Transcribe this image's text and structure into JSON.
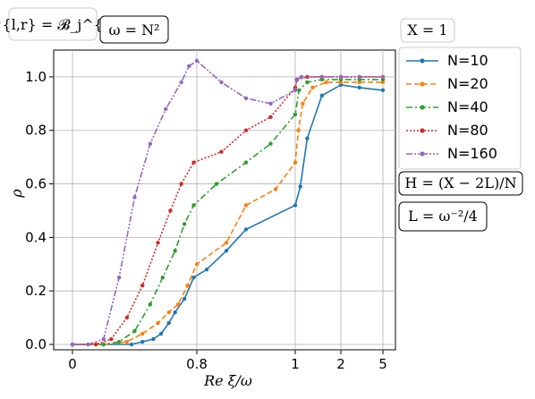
{
  "chart_data": {
    "type": "line",
    "title": "",
    "xlabel": "Re ξ/ω",
    "ylabel": "ρ",
    "x_scale": "piecewise (linear 0–1, then log-like up to 5)",
    "x_ticks": [
      {
        "value": 0,
        "label": "0"
      },
      {
        "value": 0.8,
        "label": "0.8"
      },
      {
        "value": 1,
        "label": "1"
      },
      {
        "value": 2,
        "label": "2"
      },
      {
        "value": 5,
        "label": "5"
      }
    ],
    "y_ticks": [
      "0.0",
      "0.2",
      "0.4",
      "0.6",
      "0.8",
      "1.0"
    ],
    "ylim": [
      -0.02,
      1.1
    ],
    "grid": true,
    "legend_placement": "right",
    "annotations": {
      "top_left": "𝓑^{l,r} = 𝓑_j^{l,r}",
      "omega": "ω = N²",
      "x_param": "X = 1",
      "h_formula": "H = (X − 2L)/N",
      "l_formula": "L = ω⁻²/4"
    },
    "series": [
      {
        "name": "N=10",
        "color": "#1f77b4",
        "style": "solid",
        "x": [
          0,
          0.2,
          0.38,
          0.45,
          0.52,
          0.57,
          0.62,
          0.66,
          0.72,
          0.78,
          0.82,
          0.86,
          0.9,
          1.0,
          1.08,
          1.2,
          1.5,
          2.0,
          3.0,
          5.0
        ],
        "y": [
          0.0,
          0.0,
          0.0,
          0.01,
          0.02,
          0.04,
          0.08,
          0.12,
          0.17,
          0.25,
          0.28,
          0.35,
          0.43,
          0.52,
          0.59,
          0.77,
          0.93,
          0.97,
          0.96,
          0.95
        ]
      },
      {
        "name": "N=20",
        "color": "#ff7f0e",
        "style": "dashed",
        "x": [
          0,
          0.2,
          0.35,
          0.45,
          0.55,
          0.62,
          0.68,
          0.74,
          0.8,
          0.86,
          0.9,
          0.96,
          1.0,
          1.05,
          1.12,
          1.3,
          1.6,
          2.0,
          3.0,
          5.0
        ],
        "y": [
          0.0,
          0.0,
          0.01,
          0.04,
          0.08,
          0.12,
          0.15,
          0.22,
          0.3,
          0.38,
          0.52,
          0.58,
          0.68,
          0.8,
          0.9,
          0.96,
          0.98,
          0.98,
          0.98,
          0.98
        ]
      },
      {
        "name": "N=40",
        "color": "#2ca02c",
        "style": "dashdot",
        "x": [
          0,
          0.2,
          0.3,
          0.4,
          0.5,
          0.58,
          0.66,
          0.72,
          0.78,
          0.84,
          0.9,
          0.95,
          1.0,
          1.06,
          1.2,
          1.5,
          2.0,
          3.0,
          5.0
        ],
        "y": [
          0.0,
          0.0,
          0.01,
          0.05,
          0.15,
          0.25,
          0.35,
          0.45,
          0.52,
          0.6,
          0.68,
          0.75,
          0.86,
          0.95,
          0.98,
          0.99,
          0.99,
          0.99,
          0.99
        ]
      },
      {
        "name": "N=80",
        "color": "#d62728",
        "style": "dotted",
        "x": [
          0,
          0.15,
          0.25,
          0.35,
          0.45,
          0.55,
          0.63,
          0.7,
          0.78,
          0.85,
          0.9,
          0.95,
          1.0,
          1.03,
          1.2,
          1.5,
          2.0,
          3.0,
          5.0
        ],
        "y": [
          0.0,
          0.0,
          0.02,
          0.1,
          0.22,
          0.38,
          0.5,
          0.6,
          0.68,
          0.72,
          0.8,
          0.85,
          0.96,
          0.99,
          1.0,
          1.0,
          1.0,
          1.0,
          1.0
        ]
      },
      {
        "name": "N=160",
        "color": "#9467bd",
        "style": "dashdotdot",
        "x": [
          0,
          0.1,
          0.2,
          0.3,
          0.4,
          0.5,
          0.6,
          0.7,
          0.75,
          0.8,
          0.85,
          0.9,
          0.95,
          1.0,
          1.02,
          1.1,
          1.5,
          2.0,
          3.0,
          5.0
        ],
        "y": [
          0.0,
          0.0,
          0.02,
          0.25,
          0.55,
          0.75,
          0.88,
          0.98,
          1.04,
          1.06,
          0.98,
          0.92,
          0.9,
          0.95,
          0.99,
          1.0,
          1.0,
          1.0,
          1.0,
          1.0
        ]
      }
    ]
  }
}
